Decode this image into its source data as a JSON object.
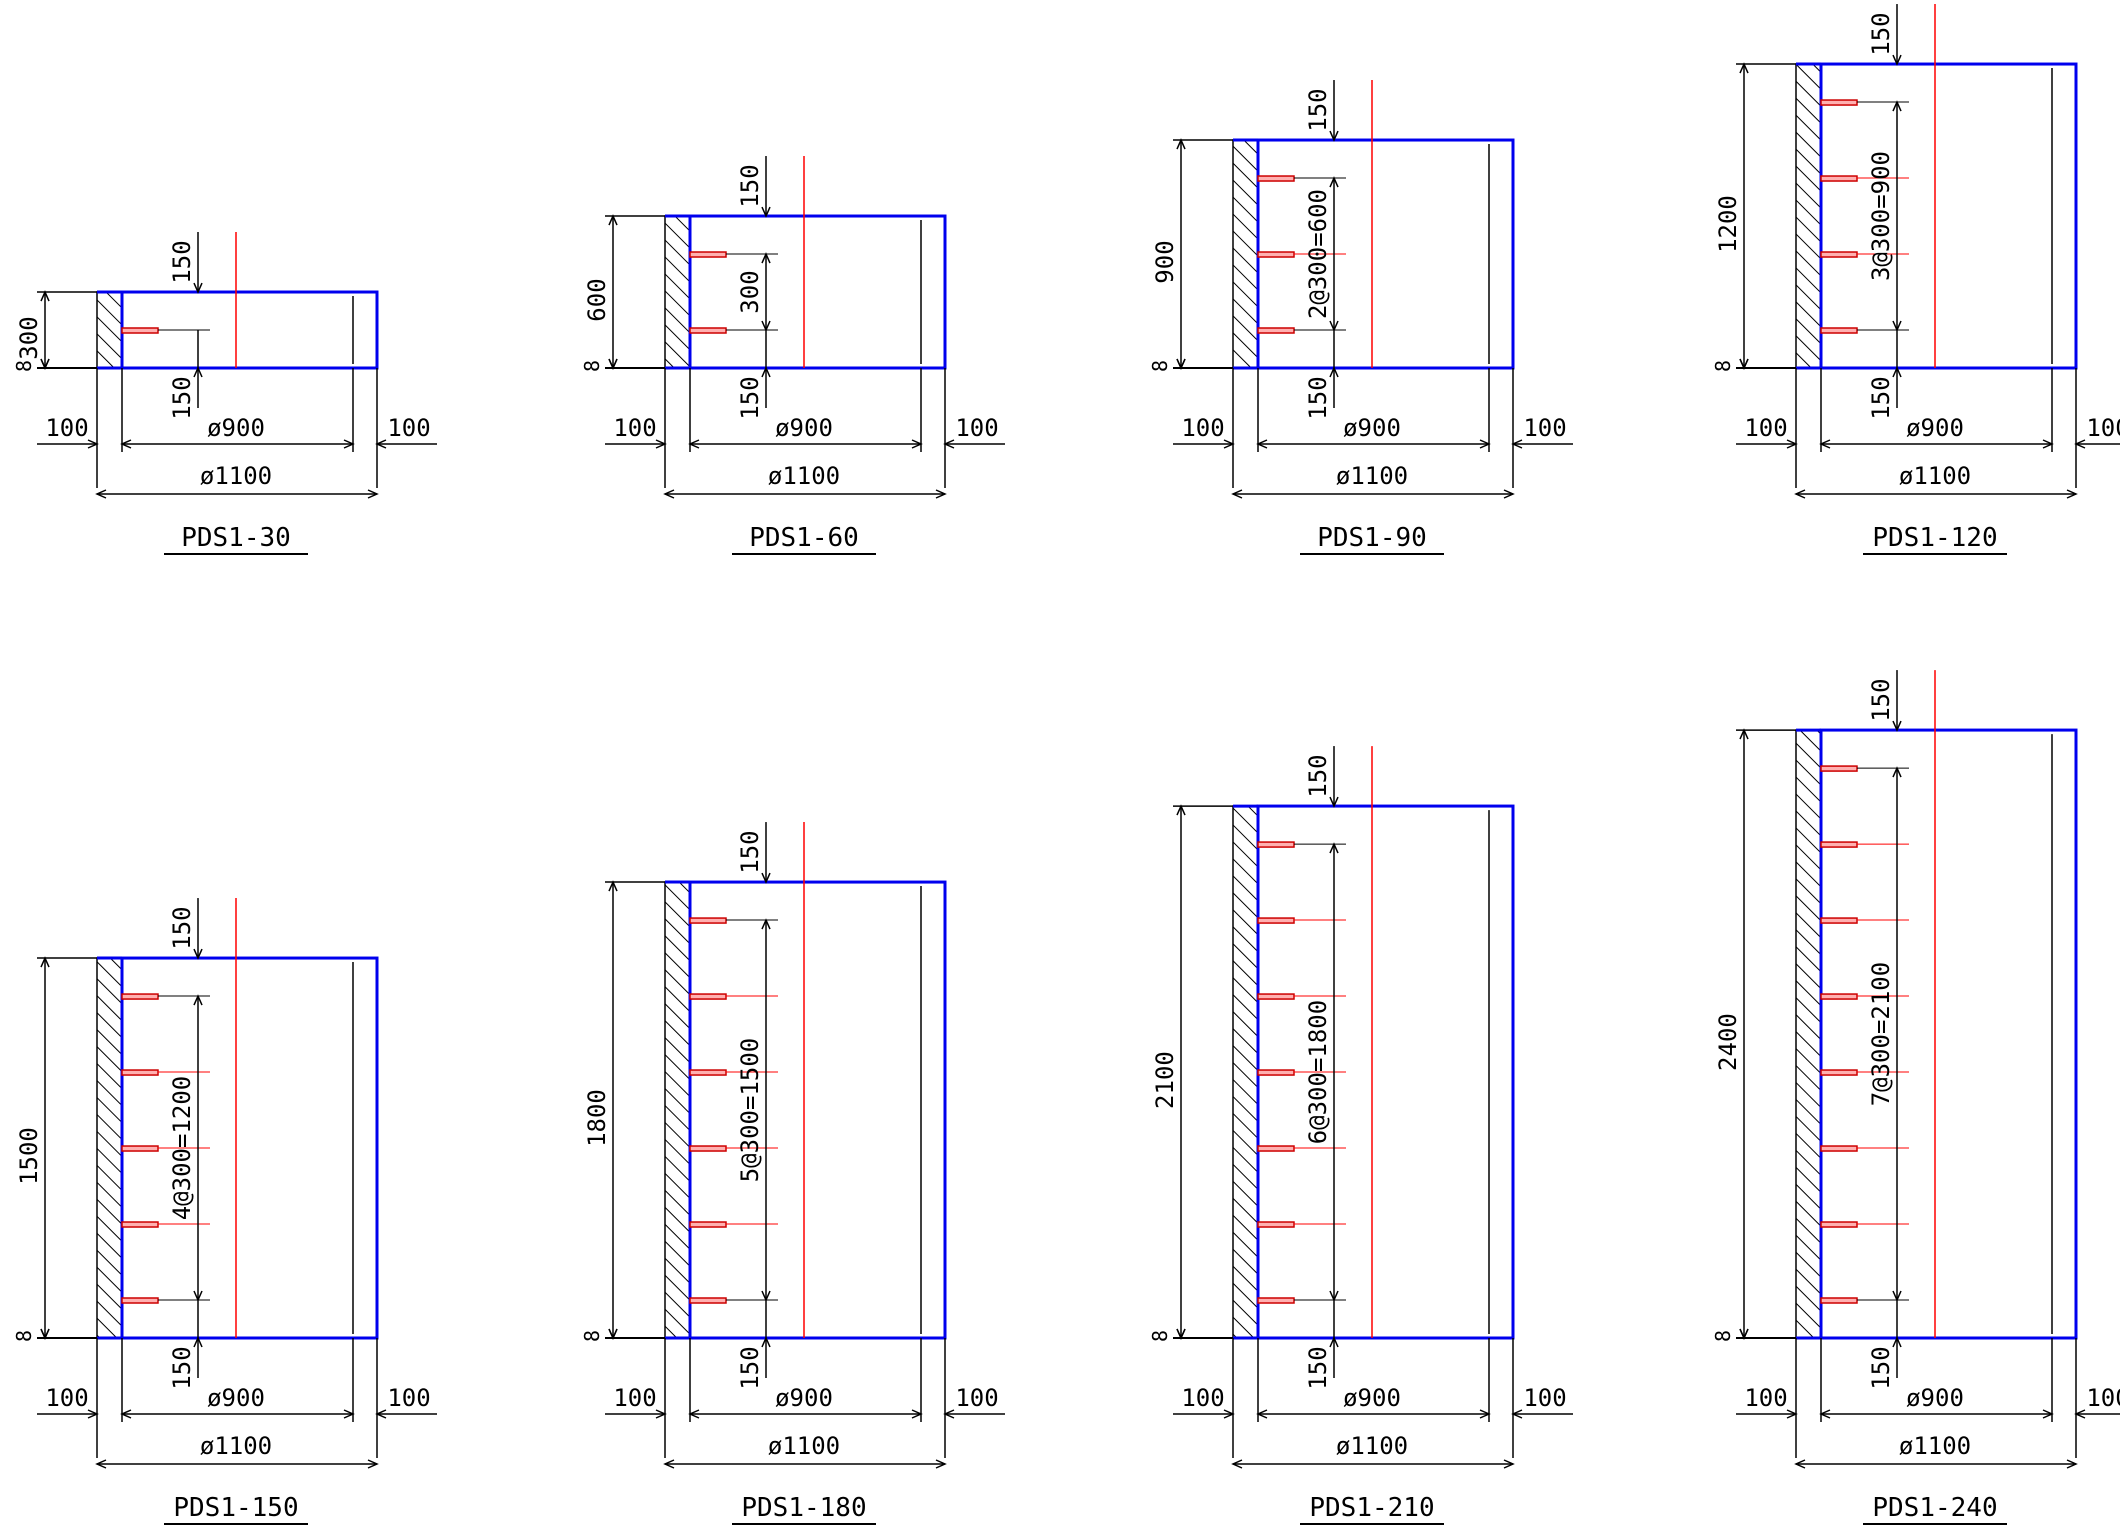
{
  "colors": {
    "outline": "#0000ee",
    "centerline": "#ff0000",
    "rebar": "#cc0000",
    "rebar_fill": "#ffb0b0",
    "dimension": "#000000"
  },
  "common": {
    "inner_diameter": "ø900",
    "outer_diameter": "ø1100",
    "wall_left": "100",
    "wall_right": "100",
    "cover_top": "150",
    "cover_bottom": "150",
    "base_offset": "8"
  },
  "sections": [
    {
      "title": "PDS1-30",
      "height_mm": 300,
      "height_label": "300",
      "spacing_label": "",
      "bars": 1
    },
    {
      "title": "PDS1-60",
      "height_mm": 600,
      "height_label": "600",
      "spacing_label": "300",
      "bars": 2
    },
    {
      "title": "PDS1-90",
      "height_mm": 900,
      "height_label": "900",
      "spacing_label": "2@300=600",
      "bars": 3
    },
    {
      "title": "PDS1-120",
      "height_mm": 1200,
      "height_label": "1200",
      "spacing_label": "3@300=900",
      "bars": 4
    },
    {
      "title": "PDS1-150",
      "height_mm": 1500,
      "height_label": "1500",
      "spacing_label": "4@300=1200",
      "bars": 5
    },
    {
      "title": "PDS1-180",
      "height_mm": 1800,
      "height_label": "1800",
      "spacing_label": "5@300=1500",
      "bars": 6
    },
    {
      "title": "PDS1-210",
      "height_mm": 2100,
      "height_label": "2100",
      "spacing_label": "6@300=1800",
      "bars": 7
    },
    {
      "title": "PDS1-240",
      "height_mm": 2400,
      "height_label": "2400",
      "spacing_label": "7@300=2100",
      "bars": 8
    }
  ]
}
